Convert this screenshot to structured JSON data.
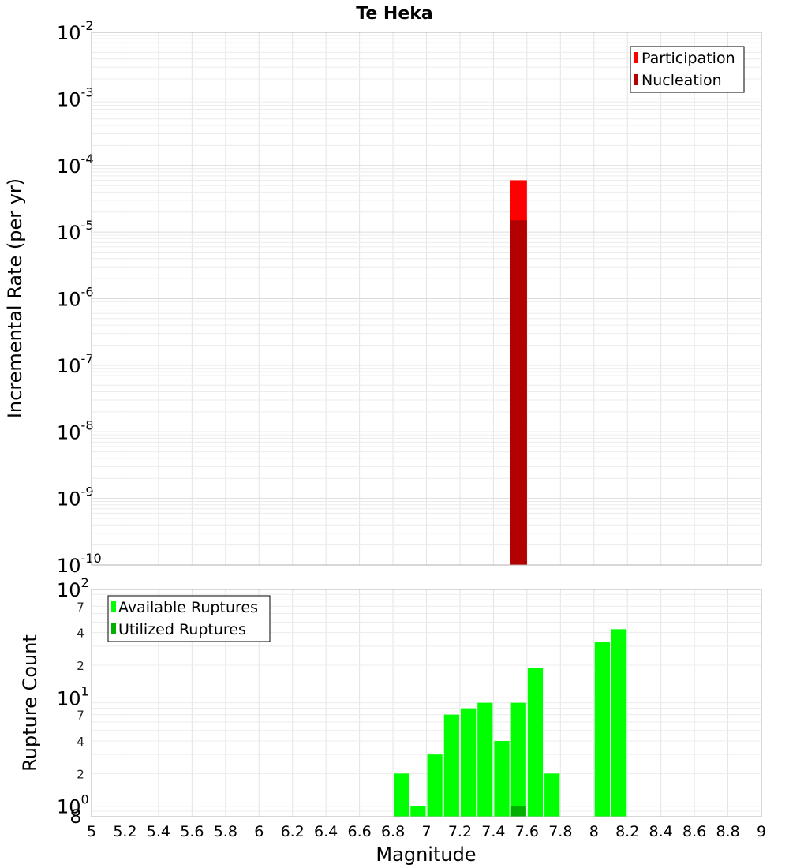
{
  "title": "Te Heka",
  "chart_data": [
    {
      "type": "bar",
      "panel": "top",
      "ylabel": "Incremental Rate (per yr)",
      "y_scale": "log",
      "ylim": [
        1e-10,
        0.01
      ],
      "xlim": [
        5,
        9
      ],
      "bin_width": 0.1,
      "grid": true,
      "legend_position": "top-right",
      "y_ticks": [
        {
          "exp": "-10"
        },
        {
          "exp": "-9"
        },
        {
          "exp": "-8"
        },
        {
          "exp": "-7"
        },
        {
          "exp": "-6"
        },
        {
          "exp": "-5"
        },
        {
          "exp": "-4"
        },
        {
          "exp": "-3"
        },
        {
          "exp": "-2"
        }
      ],
      "series": [
        {
          "name": "Participation",
          "color": "#ff0000",
          "x": [
            7.55
          ],
          "values": [
            6e-05
          ]
        },
        {
          "name": "Nucleation",
          "color": "#b30000",
          "x": [
            7.55
          ],
          "values": [
            1.5e-05
          ]
        }
      ]
    },
    {
      "type": "bar",
      "panel": "bottom",
      "xlabel": "Magnitude",
      "ylabel": "Rupture Count",
      "y_scale": "log",
      "ylim": [
        0.8,
        100
      ],
      "xlim": [
        5,
        9
      ],
      "bin_width": 0.1,
      "grid": true,
      "legend_position": "top-left",
      "x_ticks": [
        "5",
        "5.2",
        "5.4",
        "5.6",
        "5.8",
        "6",
        "6.2",
        "6.4",
        "6.6",
        "6.8",
        "7",
        "7.2",
        "7.4",
        "7.6",
        "7.8",
        "8",
        "8.2",
        "8.4",
        "8.6",
        "8.8",
        "9"
      ],
      "y_decades": [
        {
          "exp": "0"
        },
        {
          "exp": "1"
        },
        {
          "exp": "2"
        }
      ],
      "y_minor_labels": [
        "8",
        "2",
        "4",
        "7",
        "2",
        "4",
        "7"
      ],
      "series": [
        {
          "name": "Available Ruptures",
          "color": "#00ff00",
          "x": [
            6.85,
            6.95,
            7.05,
            7.15,
            7.25,
            7.35,
            7.45,
            7.55,
            7.65,
            7.75,
            8.05,
            8.15
          ],
          "values": [
            2,
            1,
            3,
            7,
            8,
            9,
            4,
            9,
            19,
            2,
            33,
            43
          ]
        },
        {
          "name": "Utilized Ruptures",
          "color": "#00b000",
          "x": [
            7.55
          ],
          "values": [
            1
          ]
        }
      ]
    }
  ]
}
